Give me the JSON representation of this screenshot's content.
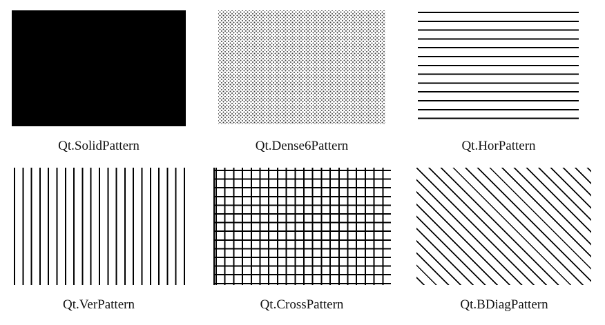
{
  "patterns": [
    {
      "label": "Qt.SolidPattern"
    },
    {
      "label": "Qt.Dense6Pattern"
    },
    {
      "label": "Qt.HorPattern"
    },
    {
      "label": "Qt.VerPattern"
    },
    {
      "label": "Qt.CrossPattern"
    },
    {
      "label": "Qt.BDiagPattern"
    }
  ],
  "colors": {
    "pattern": "#000000",
    "background": "#ffffff"
  }
}
